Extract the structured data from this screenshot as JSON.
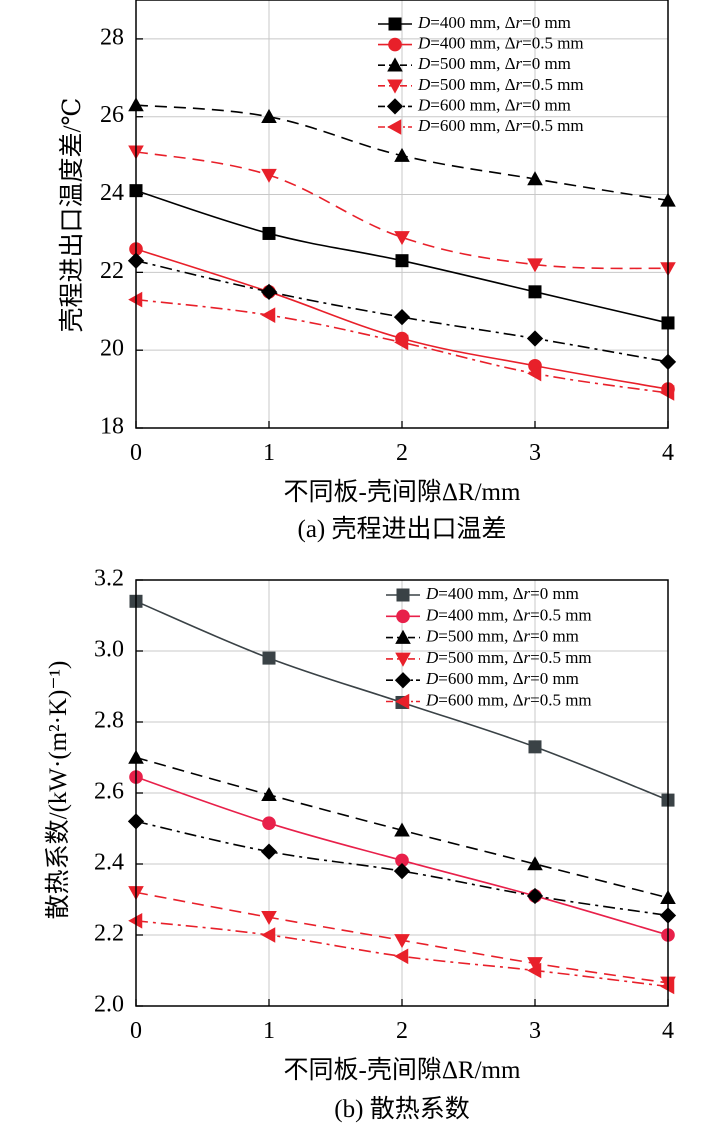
{
  "chart_data": [
    {
      "type": "line",
      "id": "a",
      "caption": "(a) 壳程进出口温差",
      "xlabel": "不同板-壳间隙ΔR/mm",
      "ylabel": "壳程进出口温度差/℃",
      "x": [
        0,
        1,
        2,
        3,
        4
      ],
      "xlim": [
        0,
        4
      ],
      "ylim": [
        18,
        29
      ],
      "xticks": [
        "0",
        "1",
        "2",
        "3",
        "4"
      ],
      "yticks": [
        "18",
        "20",
        "22",
        "24",
        "26",
        "28"
      ],
      "grid": true,
      "legend_position": "top-right",
      "series": [
        {
          "name": "D=400 mm, Δr=0 mm",
          "color": "#000000",
          "marker": "square",
          "dash": "solid",
          "values": [
            24.1,
            23.0,
            22.3,
            21.5,
            20.7
          ]
        },
        {
          "name": "D=400 mm, Δr=0.5 mm",
          "color": "#e8202a",
          "marker": "circle",
          "dash": "solid",
          "values": [
            22.6,
            21.5,
            20.3,
            19.6,
            19.0
          ]
        },
        {
          "name": "D=500 mm, Δr=0 mm",
          "color": "#000000",
          "marker": "triangle-up",
          "dash": "dash",
          "values": [
            26.3,
            26.0,
            25.0,
            24.4,
            23.85
          ]
        },
        {
          "name": "D=500 mm, Δr=0.5 mm",
          "color": "#e8202a",
          "marker": "triangle-down",
          "dash": "dash",
          "values": [
            25.1,
            24.5,
            22.9,
            22.2,
            22.1
          ]
        },
        {
          "name": "D=600 mm, Δr=0 mm",
          "color": "#000000",
          "marker": "diamond",
          "dash": "dashdot",
          "values": [
            22.3,
            21.5,
            20.85,
            20.3,
            19.7
          ]
        },
        {
          "name": "D=600 mm, Δr=0.5 mm",
          "color": "#e8202a",
          "marker": "triangle-left",
          "dash": "dashdot",
          "values": [
            21.3,
            20.9,
            20.2,
            19.4,
            18.9
          ]
        }
      ]
    },
    {
      "type": "line",
      "id": "b",
      "caption": "(b) 散热系数",
      "xlabel": "不同板-壳间隙ΔR/mm",
      "ylabel": "散热系数/(kW·(m²·K)⁻¹)",
      "x": [
        0,
        1,
        2,
        3,
        4
      ],
      "xlim": [
        0,
        4
      ],
      "ylim": [
        2.0,
        3.2
      ],
      "xticks": [
        "0",
        "1",
        "2",
        "3",
        "4"
      ],
      "yticks": [
        "2.0",
        "2.2",
        "2.4",
        "2.6",
        "2.8",
        "3.0",
        "3.2"
      ],
      "grid": true,
      "legend_position": "top-right",
      "series": [
        {
          "name": "D=400 mm, Δr=0 mm",
          "color": "#3a4246",
          "marker": "square",
          "dash": "solid",
          "values": [
            3.14,
            2.98,
            2.855,
            2.73,
            2.58
          ]
        },
        {
          "name": "D=400 mm, Δr=0.5 mm",
          "color": "#e8204a",
          "marker": "circle",
          "dash": "solid",
          "values": [
            2.645,
            2.515,
            2.41,
            2.31,
            2.2
          ]
        },
        {
          "name": "D=500 mm, Δr=0 mm",
          "color": "#000000",
          "marker": "triangle-up",
          "dash": "dash",
          "values": [
            2.7,
            2.595,
            2.495,
            2.4,
            2.305
          ]
        },
        {
          "name": "D=500 mm, Δr=0.5 mm",
          "color": "#e8202a",
          "marker": "triangle-down",
          "dash": "dash",
          "values": [
            2.32,
            2.25,
            2.185,
            2.12,
            2.065
          ]
        },
        {
          "name": "D=600 mm, Δr=0 mm",
          "color": "#000000",
          "marker": "diamond",
          "dash": "dashdot",
          "values": [
            2.52,
            2.435,
            2.38,
            2.31,
            2.255
          ]
        },
        {
          "name": "D=600 mm, Δr=0.5 mm",
          "color": "#e8202a",
          "marker": "triangle-left",
          "dash": "dashdot",
          "values": [
            2.24,
            2.2,
            2.14,
            2.1,
            2.055
          ]
        }
      ]
    }
  ]
}
